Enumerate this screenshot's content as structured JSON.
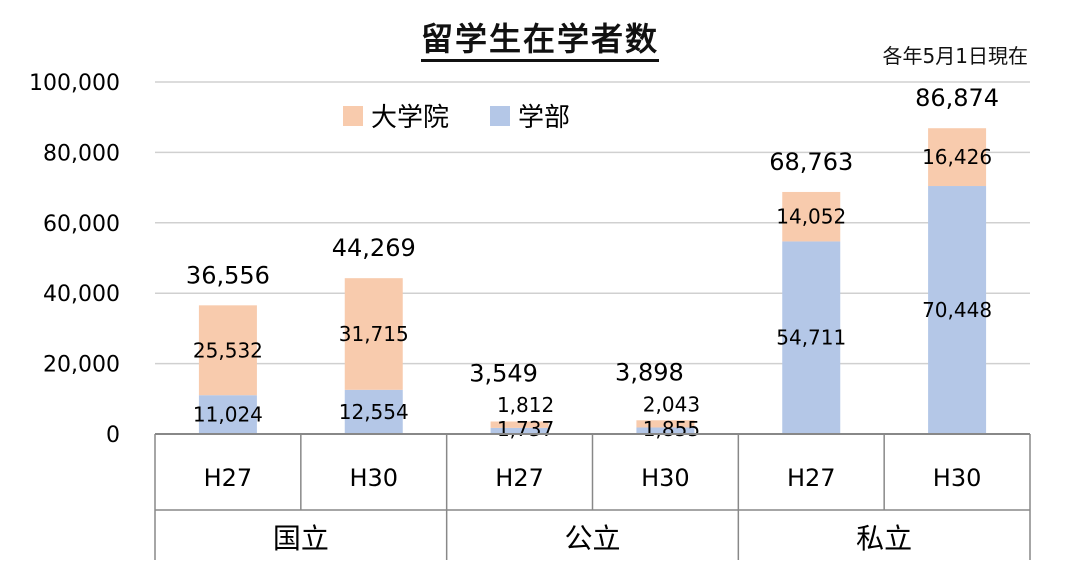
{
  "chart_data": {
    "type": "bar",
    "stacked": true,
    "title": "留学生在学者数",
    "note": "各年5月1日現在",
    "ylim": [
      0,
      100000
    ],
    "yticks": [
      "0",
      "20,000",
      "40,000",
      "60,000",
      "80,000",
      "100,000"
    ],
    "ytick_values": [
      0,
      20000,
      40000,
      60000,
      80000,
      100000
    ],
    "grid": true,
    "legend_position": "top-left",
    "colors": {
      "学部": "#b4c7e7",
      "大学院": "#f8cbad",
      "grid": "#d0d0d0",
      "axis": "#888888"
    },
    "groups": [
      {
        "label": "国立",
        "categories": [
          "H27",
          "H30"
        ]
      },
      {
        "label": "公立",
        "categories": [
          "H27",
          "H30"
        ]
      },
      {
        "label": "私立",
        "categories": [
          "H27",
          "H30"
        ]
      }
    ],
    "categories": [
      "H27",
      "H30",
      "H27",
      "H30",
      "H27",
      "H30"
    ],
    "series": [
      {
        "name": "学部",
        "values": [
          11024,
          12554,
          1737,
          1855,
          54711,
          70448
        ],
        "labels": [
          "11,024",
          "12,554",
          "1,737",
          "1,855",
          "54,711",
          "70,448"
        ]
      },
      {
        "name": "大学院",
        "values": [
          25532,
          31715,
          1812,
          2043,
          14052,
          16426
        ],
        "labels": [
          "25,532",
          "31,715",
          "1,812",
          "2,043",
          "14,052",
          "16,426"
        ]
      }
    ],
    "totals": [
      36556,
      44269,
      3549,
      3898,
      68763,
      86874
    ],
    "total_labels": [
      "36,556",
      "44,269",
      "3,549",
      "3,898",
      "68,763",
      "86,874"
    ],
    "legend": [
      "大学院",
      "学部"
    ]
  }
}
